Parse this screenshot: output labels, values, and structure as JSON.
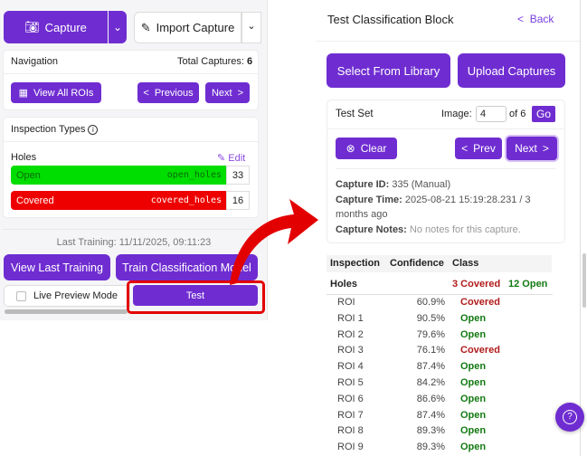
{
  "left": {
    "capture_label": "Capture",
    "import_label": "Import Capture",
    "navigation": {
      "title": "Navigation",
      "total_label": "Total Captures:",
      "total": "6",
      "view_all": "View All ROIs",
      "previous": "Previous",
      "next": "Next"
    },
    "inspection": {
      "title": "Inspection Types",
      "group": "Holes",
      "edit": "Edit",
      "classes": [
        {
          "name": "Open",
          "key": "open_holes",
          "count": "33",
          "color": "#00dd00"
        },
        {
          "name": "Covered",
          "key": "covered_holes",
          "count": "16",
          "color": "#ee0000"
        }
      ]
    },
    "last_training": "Last Training: 11/11/2025, 09:11:23",
    "view_last_training": "View Last Training",
    "train_model": "Train Classification Model",
    "live_preview": "Live Preview Mode",
    "test": "Test"
  },
  "right": {
    "title": "Test Classification Block",
    "back": "Back",
    "select_library": "Select From Library",
    "upload": "Upload Captures",
    "test_set": {
      "title": "Test Set",
      "image_label": "Image:",
      "image_value": "4",
      "of": "of 6",
      "go": "Go",
      "clear": "Clear",
      "prev": "Prev",
      "next": "Next",
      "capture_id_label": "Capture ID:",
      "capture_id": "335 (Manual)",
      "capture_time_label": "Capture Time:",
      "capture_time": "2025-08-21 15:19:28.231 / 3 months ago",
      "notes_label": "Capture Notes:",
      "notes": "No notes for this capture."
    },
    "table": {
      "headers": [
        "Inspection",
        "Confidence",
        "Class"
      ],
      "group": "Holes",
      "covered_count": "3 Covered",
      "open_count": "12 Open",
      "rows": [
        {
          "name": "ROI",
          "confidence": "60.9%",
          "class": "Covered"
        },
        {
          "name": "ROI 1",
          "confidence": "90.5%",
          "class": "Open"
        },
        {
          "name": "ROI 2",
          "confidence": "79.6%",
          "class": "Open"
        },
        {
          "name": "ROI 3",
          "confidence": "76.1%",
          "class": "Covered"
        },
        {
          "name": "ROI 4",
          "confidence": "87.4%",
          "class": "Open"
        },
        {
          "name": "ROI 5",
          "confidence": "84.2%",
          "class": "Open"
        },
        {
          "name": "ROI 6",
          "confidence": "86.6%",
          "class": "Open"
        },
        {
          "name": "ROI 7",
          "confidence": "87.4%",
          "class": "Open"
        },
        {
          "name": "ROI 8",
          "confidence": "89.3%",
          "class": "Open"
        },
        {
          "name": "ROI 9",
          "confidence": "89.3%",
          "class": "Open"
        }
      ]
    }
  },
  "colors": {
    "accent": "#6f2dd1",
    "covered": "#b11b1b",
    "open": "#137a13",
    "highlight": "#e30000"
  }
}
